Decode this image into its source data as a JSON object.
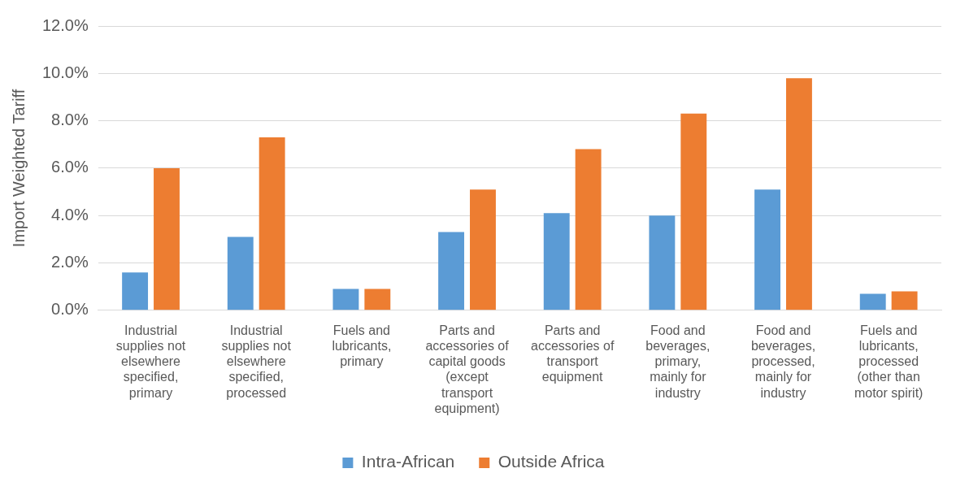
{
  "chart_data": {
    "type": "bar",
    "ylabel": "Import Weighted Tariff",
    "categories": [
      "Industrial supplies not elsewhere specified, primary",
      "Industrial supplies not elsewhere specified, processed",
      "Fuels and lubricants, primary",
      "Parts and accessories of capital goods (except transport equipment)",
      "Parts and accessories of transport equipment",
      "Food and beverages, primary, mainly for industry",
      "Food and beverages, processed, mainly for industry",
      "Fuels and lubricants, processed (other than motor spirit)"
    ],
    "series": [
      {
        "name": "Intra-African",
        "color": "#5b9bd5",
        "values": [
          1.6,
          3.1,
          0.9,
          3.3,
          4.1,
          4.0,
          5.1,
          0.7
        ]
      },
      {
        "name": "Outside Africa",
        "color": "#ed7d31",
        "values": [
          6.0,
          7.3,
          0.9,
          5.1,
          6.8,
          8.3,
          9.8,
          0.8
        ]
      }
    ],
    "ylim": [
      0,
      12
    ],
    "yticks": [
      {
        "value": 0,
        "label": "0.0%"
      },
      {
        "value": 2,
        "label": "2.0%"
      },
      {
        "value": 4,
        "label": "4.0%"
      },
      {
        "value": 6,
        "label": "6.0%"
      },
      {
        "value": 8,
        "label": "8.0%"
      },
      {
        "value": 10,
        "label": "10.0%"
      },
      {
        "value": 12,
        "label": "12.0%"
      }
    ],
    "grid": "y",
    "legend": "bottom"
  }
}
